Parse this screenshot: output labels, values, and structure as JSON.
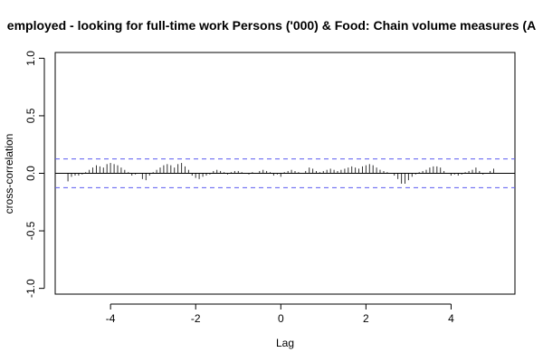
{
  "chart_data": {
    "type": "bar",
    "title": "employed - looking for full-time work Persons ('000) & Food: Chain volume measures (A",
    "xlabel": "Lag",
    "ylabel": "cross-correlation",
    "xlim": [
      -5.3,
      5.5
    ],
    "ylim": [
      -1.05,
      1.05
    ],
    "x_ticks": [
      -4,
      -2,
      0,
      2,
      4
    ],
    "x_tick_labels": [
      "-4",
      "-2",
      "0",
      "2",
      "4"
    ],
    "y_ticks": [
      -1.0,
      -0.5,
      0.0,
      0.5,
      1.0
    ],
    "y_tick_labels": [
      "-1.0",
      "-0.5",
      "0.0",
      "0.5",
      "1.0"
    ],
    "confidence_bound": 0.125,
    "grid": false,
    "x": [
      -5.0,
      -4.917,
      -4.833,
      -4.75,
      -4.667,
      -4.583,
      -4.5,
      -4.417,
      -4.333,
      -4.25,
      -4.167,
      -4.083,
      -4.0,
      -3.917,
      -3.833,
      -3.75,
      -3.667,
      -3.583,
      -3.5,
      -3.417,
      -3.333,
      -3.25,
      -3.167,
      -3.083,
      -3.0,
      -2.917,
      -2.833,
      -2.75,
      -2.667,
      -2.583,
      -2.5,
      -2.417,
      -2.333,
      -2.25,
      -2.167,
      -2.083,
      -2.0,
      -1.917,
      -1.833,
      -1.75,
      -1.667,
      -1.583,
      -1.5,
      -1.417,
      -1.333,
      -1.25,
      -1.167,
      -1.083,
      -1.0,
      -0.917,
      -0.833,
      -0.75,
      -0.667,
      -0.583,
      -0.5,
      -0.417,
      -0.333,
      -0.25,
      -0.167,
      -0.083,
      0.0,
      0.083,
      0.167,
      0.25,
      0.333,
      0.417,
      0.5,
      0.583,
      0.667,
      0.75,
      0.833,
      0.917,
      1.0,
      1.083,
      1.167,
      1.25,
      1.333,
      1.417,
      1.5,
      1.583,
      1.667,
      1.75,
      1.833,
      1.917,
      2.0,
      2.083,
      2.167,
      2.25,
      2.333,
      2.417,
      2.5,
      2.583,
      2.667,
      2.75,
      2.833,
      2.917,
      3.0,
      3.083,
      3.167,
      3.25,
      3.333,
      3.417,
      3.5,
      3.583,
      3.667,
      3.75,
      3.833,
      3.917,
      4.0,
      4.083,
      4.167,
      4.25,
      4.333,
      4.417,
      4.5,
      4.583,
      4.667,
      4.75,
      4.833,
      4.917,
      5.0
    ],
    "values": [
      -0.07,
      -0.03,
      -0.02,
      -0.02,
      -0.01,
      0.01,
      0.03,
      0.05,
      0.07,
      0.06,
      0.05,
      0.08,
      0.09,
      0.08,
      0.07,
      0.05,
      0.03,
      0.01,
      -0.02,
      -0.01,
      0.0,
      -0.05,
      -0.06,
      -0.02,
      0.01,
      0.03,
      0.05,
      0.07,
      0.08,
      0.07,
      0.05,
      0.08,
      0.09,
      0.06,
      0.03,
      -0.02,
      -0.04,
      -0.05,
      -0.03,
      -0.02,
      -0.01,
      0.02,
      0.03,
      0.02,
      0.01,
      -0.01,
      0.01,
      0.02,
      0.02,
      0.01,
      0.0,
      -0.01,
      0.01,
      0.0,
      0.02,
      0.03,
      0.02,
      0.01,
      -0.02,
      -0.01,
      -0.03,
      0.01,
      0.02,
      0.03,
      0.02,
      0.01,
      0.0,
      0.02,
      0.05,
      0.04,
      0.02,
      0.01,
      0.02,
      0.03,
      0.04,
      0.03,
      0.02,
      0.03,
      0.04,
      0.05,
      0.06,
      0.05,
      0.04,
      0.06,
      0.07,
      0.08,
      0.07,
      0.05,
      0.03,
      0.02,
      0.01,
      0.0,
      -0.02,
      -0.05,
      -0.09,
      -0.09,
      -0.06,
      -0.03,
      -0.01,
      0.01,
      0.02,
      0.03,
      0.05,
      0.06,
      0.06,
      0.05,
      0.02,
      0.0,
      -0.02,
      -0.01,
      -0.02,
      -0.01,
      0.01,
      0.02,
      0.03,
      0.05,
      0.02,
      -0.01,
      0.0,
      0.02,
      0.04
    ]
  }
}
